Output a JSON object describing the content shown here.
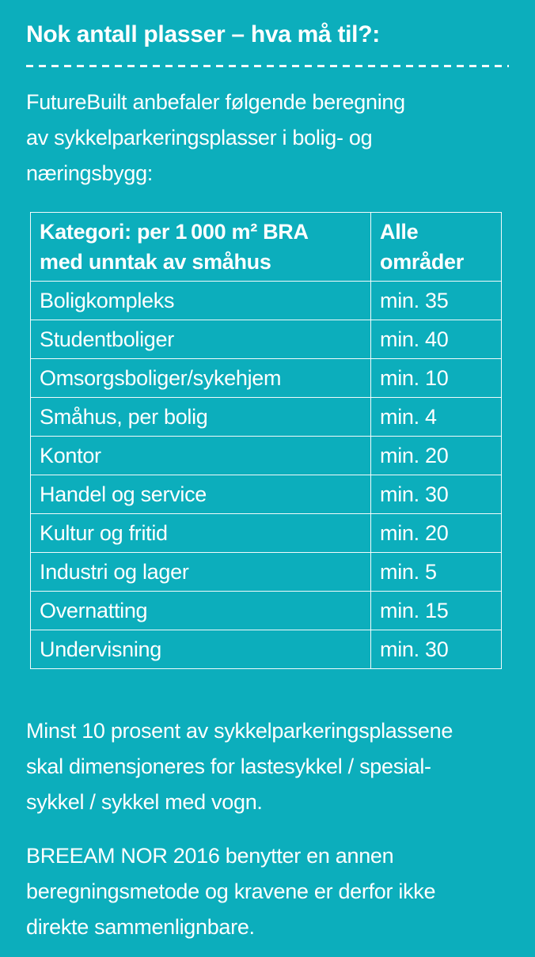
{
  "theme": {
    "background": "#0caebc",
    "text": "#ffffff",
    "divider": "#ffffff",
    "table_border": "#ffffff"
  },
  "heading": {
    "title": "Nok antall plasser – hva må til?:"
  },
  "intro": {
    "lines": [
      "FutureBuilt anbefaler følgende beregning",
      "av sykkelparkeringsplasser i bolig- og",
      "næringsbygg:"
    ]
  },
  "table": {
    "header": {
      "category_line1": "Kategori: per 1 000 m² BRA",
      "category_line2": "med unntak av småhus",
      "value_line1": "Alle",
      "value_line2": "områder"
    },
    "rows": [
      {
        "category": "Boligkompleks",
        "value": "min. 35"
      },
      {
        "category": "Studentboliger",
        "value": "min. 40"
      },
      {
        "category": "Omsorgsboliger/sykehjem",
        "value": "min. 10"
      },
      {
        "category": "Småhus, per bolig",
        "value": "min. 4"
      },
      {
        "category": "Kontor",
        "value": "min. 20"
      },
      {
        "category": "Handel og service",
        "value": "min. 30"
      },
      {
        "category": "Kultur og fritid",
        "value": "min. 20"
      },
      {
        "category": "Industri og lager",
        "value": "min. 5"
      },
      {
        "category": "Overnatting",
        "value": "min. 15"
      },
      {
        "category": "Undervisning",
        "value": "min. 30"
      }
    ]
  },
  "notes": {
    "note1_lines": [
      "Minst 10 prosent av sykkelparkeringsplassene",
      "skal dimensjoneres for lastesykkel / spesial-",
      "sykkel / sykkel med vogn."
    ],
    "note2_lines": [
      "BREEAM NOR 2016 benytter en annen",
      "beregningsmetode og kravene er derfor ikke",
      "direkte sammenlignbare."
    ]
  }
}
